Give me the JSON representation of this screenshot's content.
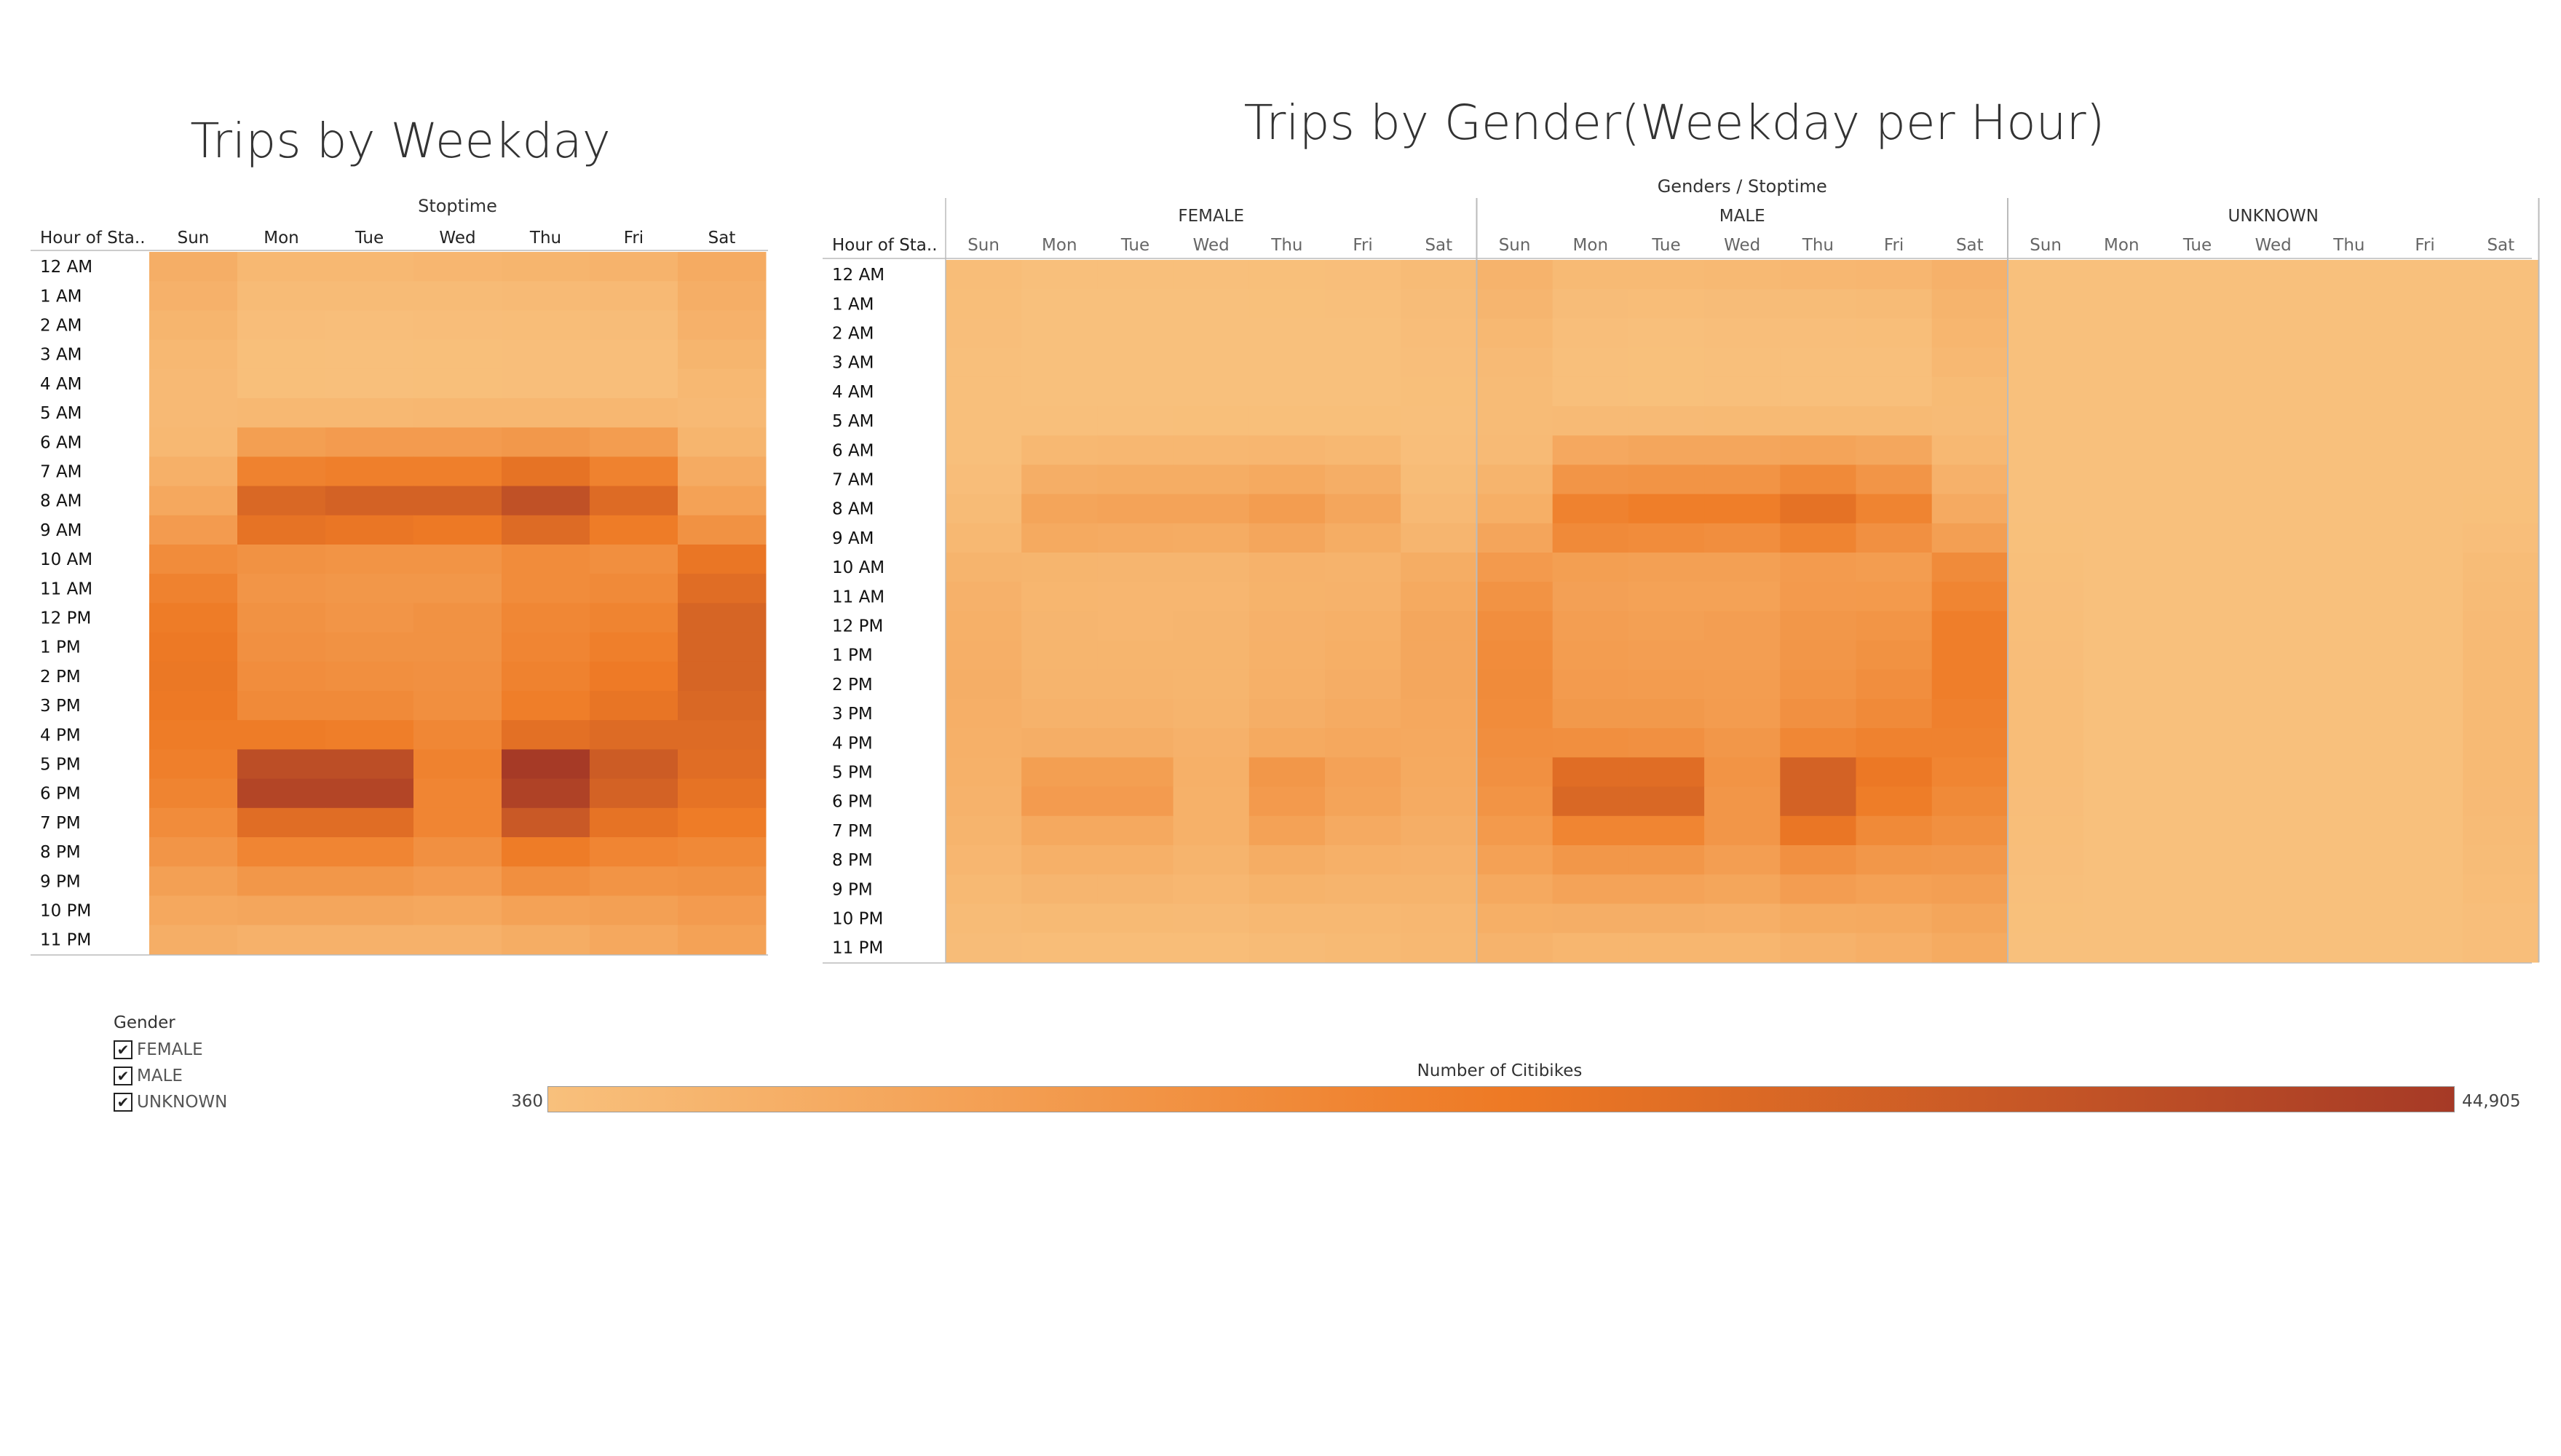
{
  "colors": {
    "low": "#f8c07c",
    "mid": "#ee7a25",
    "high": "#a63a26"
  },
  "chart_data": [
    {
      "type": "heatmap",
      "title": "Trips by Weekday",
      "column_header": "Stoptime",
      "row_header": "Hour of Sta..",
      "columns": [
        "Sun",
        "Mon",
        "Tue",
        "Wed",
        "Thu",
        "Fri",
        "Sat"
      ],
      "rows": [
        "12 AM",
        "1 AM",
        "2 AM",
        "3 AM",
        "4 AM",
        "5 AM",
        "6 AM",
        "7 AM",
        "8 AM",
        "9 AM",
        "10 AM",
        "11 AM",
        "12 PM",
        "1 PM",
        "2 PM",
        "3 PM",
        "4 PM",
        "5 PM",
        "6 PM",
        "7 PM",
        "8 PM",
        "9 PM",
        "10 PM",
        "11 PM"
      ],
      "values": [
        [
          6000,
          3000,
          3000,
          3500,
          4000,
          4500,
          7000
        ],
        [
          5000,
          2000,
          1800,
          2000,
          2200,
          2500,
          6000
        ],
        [
          4000,
          1200,
          1000,
          1200,
          1300,
          1500,
          5000
        ],
        [
          3000,
          800,
          700,
          800,
          900,
          1000,
          4000
        ],
        [
          2500,
          800,
          700,
          800,
          900,
          1000,
          3000
        ],
        [
          2500,
          3000,
          3000,
          3200,
          3200,
          3200,
          2500
        ],
        [
          3000,
          11000,
          12000,
          12000,
          13000,
          11500,
          4000
        ],
        [
          5500,
          20000,
          21000,
          21000,
          25000,
          20000,
          7000
        ],
        [
          8000,
          29000,
          31000,
          31000,
          37000,
          28000,
          10000
        ],
        [
          12000,
          25000,
          24000,
          23000,
          28000,
          22000,
          15000
        ],
        [
          17000,
          15000,
          14500,
          14500,
          17000,
          16000,
          24000
        ],
        [
          20000,
          14000,
          13500,
          13500,
          17000,
          17500,
          27000
        ],
        [
          22000,
          15000,
          14000,
          15000,
          18500,
          19500,
          30000
        ],
        [
          23000,
          15500,
          15000,
          15000,
          19000,
          21000,
          30000
        ],
        [
          23500,
          16500,
          16000,
          15500,
          20000,
          22500,
          30000
        ],
        [
          23000,
          17500,
          17500,
          16000,
          21500,
          24500,
          29000
        ],
        [
          22000,
          22000,
          21500,
          18500,
          26000,
          28000,
          28000
        ],
        [
          21000,
          38000,
          38000,
          20000,
          45000,
          33000,
          27000
        ],
        [
          19500,
          41000,
          41000,
          19000,
          42000,
          31000,
          25000
        ],
        [
          17000,
          27000,
          27000,
          19000,
          34000,
          25000,
          22000
        ],
        [
          14000,
          19000,
          19000,
          15500,
          22000,
          19000,
          18000
        ],
        [
          10500,
          13500,
          13500,
          12000,
          16000,
          14500,
          15000
        ],
        [
          8000,
          8500,
          8500,
          8000,
          10000,
          10500,
          12000
        ],
        [
          6000,
          5000,
          5000,
          5000,
          6500,
          8000,
          10000
        ]
      ],
      "value_range": [
        360,
        44905
      ]
    },
    {
      "type": "heatmap",
      "title": "Trips by Gender(Weekday per Hour)",
      "column_header": "Genders / Stoptime",
      "row_header": "Hour of Sta..",
      "groups": [
        "FEMALE",
        "MALE",
        "UNKNOWN"
      ],
      "columns": [
        "Sun",
        "Mon",
        "Tue",
        "Wed",
        "Thu",
        "Fri",
        "Sat"
      ],
      "rows": [
        "12 AM",
        "1 AM",
        "2 AM",
        "3 AM",
        "4 AM",
        "5 AM",
        "6 AM",
        "7 AM",
        "8 AM",
        "9 AM",
        "10 AM",
        "11 AM",
        "12 PM",
        "1 PM",
        "2 PM",
        "3 PM",
        "4 PM",
        "5 PM",
        "6 PM",
        "7 PM",
        "8 PM",
        "9 PM",
        "10 PM",
        "11 PM"
      ],
      "series": [
        {
          "name": "FEMALE",
          "values": [
            [
              1300,
              600,
              600,
              700,
              800,
              900,
              1800
            ],
            [
              1100,
              400,
              400,
              450,
              500,
              550,
              1500
            ],
            [
              900,
              300,
              250,
              300,
              320,
              360,
              1200
            ],
            [
              700,
              200,
              180,
              200,
              220,
              250,
              1000
            ],
            [
              600,
              200,
              180,
              200,
              220,
              250,
              800
            ],
            [
              600,
              700,
              700,
              750,
              750,
              750,
              600
            ],
            [
              700,
              3000,
              3200,
              3200,
              3500,
              3000,
              1000
            ],
            [
              1200,
              6000,
              6500,
              6500,
              7500,
              6000,
              1700
            ],
            [
              2000,
              9000,
              9500,
              9500,
              11500,
              8500,
              2500
            ],
            [
              3000,
              7500,
              7000,
              6800,
              8500,
              6500,
              3800
            ],
            [
              4200,
              4000,
              3800,
              3800,
              4800,
              4500,
              6500
            ],
            [
              5000,
              3600,
              3500,
              3500,
              4600,
              4800,
              7500
            ],
            [
              5500,
              3800,
              3500,
              3800,
              5000,
              5400,
              8300
            ],
            [
              5800,
              4000,
              3900,
              3900,
              5200,
              5900,
              8400
            ],
            [
              6000,
              4300,
              4200,
              4000,
              5500,
              6300,
              8400
            ],
            [
              5800,
              4700,
              4700,
              4200,
              6000,
              7000,
              8000
            ],
            [
              5500,
              6000,
              6000,
              5000,
              7500,
              8000,
              7700
            ],
            [
              5200,
              11000,
              11000,
              5500,
              13500,
              9800,
              7500
            ],
            [
              4800,
              12000,
              12000,
              5200,
              12500,
              9200,
              7000
            ],
            [
              4200,
              7800,
              7800,
              5200,
              10000,
              7300,
              6000
            ],
            [
              3500,
              5500,
              5500,
              4300,
              6500,
              5500,
              5000
            ],
            [
              2600,
              3800,
              3800,
              3300,
              4600,
              4200,
              4100
            ],
            [
              2000,
              2400,
              2400,
              2200,
              2800,
              3000,
              3300
            ],
            [
              1500,
              1400,
              1400,
              1400,
              1800,
              2300,
              2800
            ]
          ]
        },
        {
          "name": "MALE",
          "values": [
            [
              4500,
              2300,
              2300,
              2700,
              3100,
              3500,
              5000
            ],
            [
              3800,
              1500,
              1350,
              1500,
              1650,
              1900,
              4300
            ],
            [
              3000,
              850,
              700,
              850,
              950,
              1100,
              3700
            ],
            [
              2200,
              550,
              500,
              550,
              650,
              700,
              2900
            ],
            [
              1800,
              550,
              500,
              550,
              650,
              700,
              2100
            ],
            [
              1800,
              2200,
              2200,
              2400,
              2400,
              2400,
              1800
            ],
            [
              2200,
              7900,
              8600,
              8600,
              9300,
              8300,
              2900
            ],
            [
              4200,
              14000,
              14500,
              14500,
              17500,
              14000,
              5000
            ],
            [
              5900,
              20000,
              21500,
              21500,
              25500,
              19500,
              7300
            ],
            [
              8800,
              17500,
              17000,
              16200,
              19500,
              15500,
              10800
            ],
            [
              12500,
              11000,
              10700,
              10700,
              12200,
              11500,
              17200
            ],
            [
              14700,
              10400,
              10000,
              10000,
              12400,
              12600,
              19200
            ],
            [
              16300,
              11200,
              10500,
              11200,
              13500,
              14100,
              21400
            ],
            [
              16900,
              11500,
              11100,
              11100,
              13800,
              15100,
              21300
            ],
            [
              17200,
              12200,
              11800,
              11500,
              14500,
              16200,
              21300
            ],
            [
              16900,
              12800,
              12800,
              11800,
              15500,
              17500,
              20700
            ],
            [
              16200,
              16000,
              15500,
              13500,
              18500,
              20000,
              20000
            ],
            [
              15500,
              27000,
              27000,
              14500,
              31000,
              23200,
              19200
            ],
            [
              14400,
              29000,
              29000,
              13800,
              31000,
              21800,
              17700
            ],
            [
              12600,
              19200,
              19200,
              13800,
              24000,
              17700,
              15700
            ],
            [
              10300,
              13500,
              13500,
              11200,
              15500,
              13500,
              13000
            ],
            [
              7800,
              9700,
              9700,
              8700,
              11400,
              10300,
              10900
            ],
            [
              5900,
              6100,
              6100,
              5800,
              7200,
              7500,
              8700
            ],
            [
              4400,
              3600,
              3600,
              3600,
              4700,
              5700,
              7200
            ]
          ]
        },
        {
          "name": "UNKNOWN",
          "values": [
            [
              200,
              100,
              100,
              100,
              100,
              100,
              200
            ],
            [
              100,
              100,
              100,
              100,
              100,
              100,
              200
            ],
            [
              100,
              100,
              100,
              100,
              100,
              100,
              100
            ],
            [
              100,
              100,
              100,
              100,
              100,
              100,
              100
            ],
            [
              100,
              100,
              100,
              100,
              100,
              100,
              100
            ],
            [
              100,
              100,
              100,
              100,
              100,
              100,
              100
            ],
            [
              100,
              100,
              200,
              200,
              200,
              200,
              100
            ],
            [
              100,
              200,
              200,
              200,
              200,
              200,
              300
            ],
            [
              300,
              300,
              300,
              300,
              300,
              300,
              500
            ],
            [
              500,
              300,
              300,
              300,
              300,
              300,
              1000
            ],
            [
              800,
              400,
              400,
              400,
              400,
              400,
              1700
            ],
            [
              1000,
              400,
              400,
              400,
              400,
              400,
              2000
            ],
            [
              1100,
              400,
              400,
              400,
              400,
              400,
              2200
            ],
            [
              1200,
              400,
              400,
              400,
              400,
              400,
              2300
            ],
            [
              1300,
              400,
              400,
              400,
              400,
              400,
              2300
            ],
            [
              1300,
              400,
              400,
              400,
              400,
              400,
              2300
            ],
            [
              1300,
              400,
              400,
              400,
              400,
              400,
              2300
            ],
            [
              1300,
              400,
              400,
              400,
              400,
              400,
              2300
            ],
            [
              1200,
              400,
              400,
              400,
              400,
              400,
              2200
            ],
            [
              1100,
              400,
              400,
              400,
              400,
              400,
              1900
            ],
            [
              900,
              400,
              400,
              400,
              400,
              400,
              1600
            ],
            [
              700,
              300,
              300,
              300,
              300,
              300,
              1300
            ],
            [
              500,
              200,
              200,
              200,
              200,
              300,
              1000
            ],
            [
              400,
              200,
              200,
              200,
              200,
              300,
              900
            ]
          ]
        }
      ],
      "value_range": [
        360,
        44905
      ]
    }
  ],
  "legend": {
    "gender_title": "Gender",
    "gender_items": [
      "FEMALE",
      "MALE",
      "UNKNOWN"
    ],
    "check_mark": "✔",
    "color_title": "Number of Citibikes",
    "color_min": "360",
    "color_max": "44,905"
  }
}
